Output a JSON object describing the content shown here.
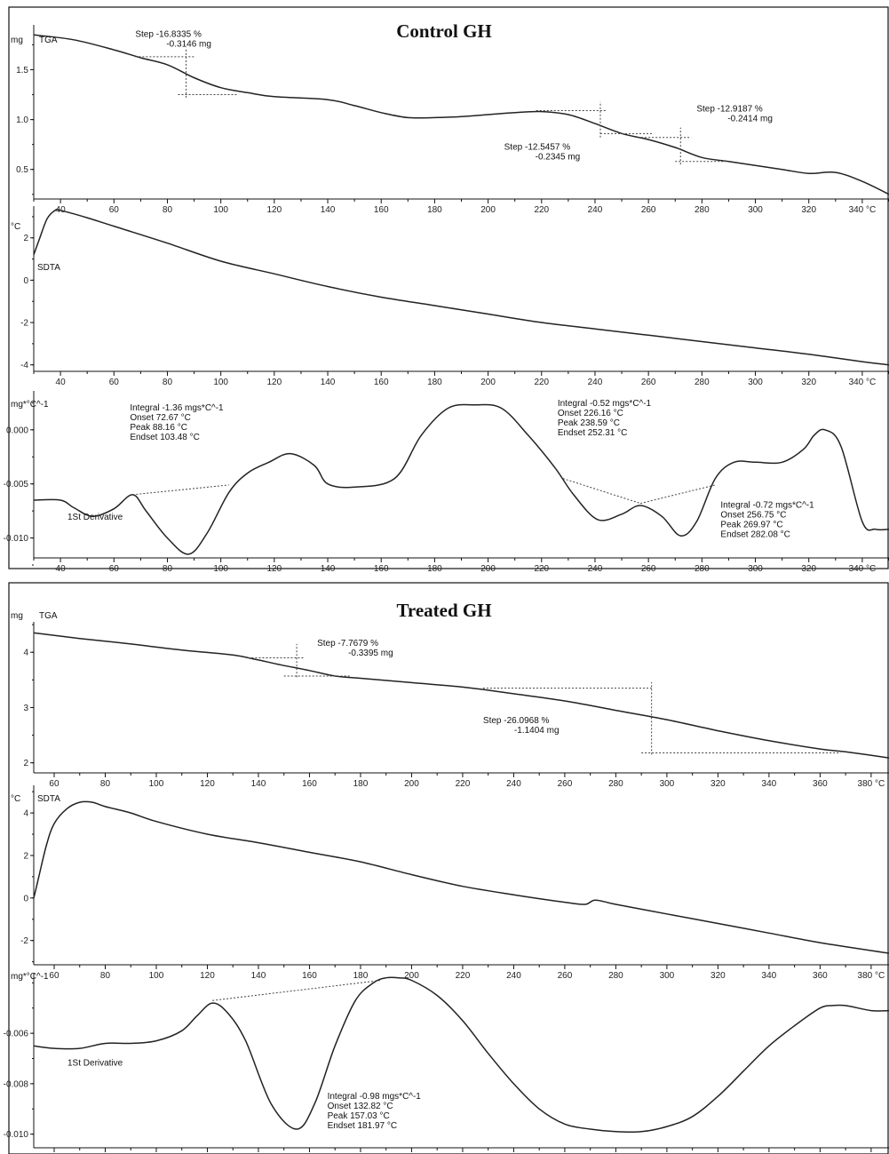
{
  "figures": [
    {
      "title": "Control GH",
      "xlim": [
        30,
        350
      ],
      "x_tick_suffix_last": "°C",
      "x_ticks": [
        40,
        60,
        80,
        100,
        120,
        140,
        160,
        180,
        200,
        220,
        240,
        260,
        280,
        300,
        320,
        340
      ],
      "panels": [
        {
          "id": "tga",
          "unit": "mg",
          "label": "TGA",
          "ylim": [
            0.15,
            1.95
          ],
          "y_ticks": [
            0.5,
            1.0,
            1.5
          ],
          "y_tick_labels": [
            "0.5",
            "1.0",
            "1.5"
          ],
          "x": [
            30,
            45,
            60,
            70,
            80,
            90,
            100,
            110,
            120,
            140,
            150,
            160,
            170,
            180,
            190,
            200,
            210,
            220,
            230,
            240,
            250,
            260,
            270,
            280,
            290,
            300,
            310,
            320,
            330,
            340,
            350
          ],
          "y": [
            1.85,
            1.8,
            1.7,
            1.62,
            1.55,
            1.42,
            1.32,
            1.27,
            1.23,
            1.2,
            1.14,
            1.07,
            1.02,
            1.02,
            1.03,
            1.05,
            1.07,
            1.08,
            1.05,
            0.96,
            0.86,
            0.8,
            0.72,
            0.62,
            0.58,
            0.54,
            0.5,
            0.46,
            0.47,
            0.38,
            0.25
          ],
          "annotations": [
            {
              "lines": [
                "Step  -16.8335 %",
                "-0.3146 mg"
              ],
              "x": 68,
              "y": 1.83
            },
            {
              "lines": [
                "Step  -12.5457 %",
                "-0.2345 mg"
              ],
              "x": 206,
              "y": 0.7
            },
            {
              "lines": [
                "Step  -12.9187 %",
                "-0.2414 mg"
              ],
              "x": 278,
              "y": 1.08
            }
          ]
        },
        {
          "id": "sdta",
          "unit": "°C",
          "label": "SDTA",
          "ylim": [
            -4.6,
            3.5
          ],
          "y_ticks": [
            -4,
            -2,
            0,
            2
          ],
          "y_tick_labels": [
            "-4",
            "-2",
            "0",
            "2"
          ],
          "x": [
            30,
            32,
            35,
            38,
            40,
            50,
            60,
            80,
            100,
            120,
            140,
            160,
            180,
            200,
            220,
            240,
            260,
            280,
            300,
            320,
            340,
            350
          ],
          "y": [
            1.2,
            1.9,
            2.9,
            3.3,
            3.3,
            2.95,
            2.55,
            1.75,
            0.9,
            0.3,
            -0.3,
            -0.8,
            -1.2,
            -1.6,
            -2.0,
            -2.3,
            -2.6,
            -2.9,
            -3.2,
            -3.5,
            -3.85,
            -4.0
          ]
        },
        {
          "id": "deriv",
          "unit": "mg*°C^-1",
          "label": "1St Derivative",
          "ylim": [
            -0.0125,
            0.0036
          ],
          "y_ticks": [
            -0.01,
            -0.005,
            0.0
          ],
          "y_tick_labels": [
            "-0.010",
            "-0.005",
            "0.000"
          ],
          "x": [
            30,
            40,
            45,
            52,
            60,
            67,
            72,
            80,
            88,
            95,
            103,
            110,
            118,
            126,
            135,
            140,
            150,
            165,
            175,
            185,
            195,
            205,
            215,
            225,
            232,
            241,
            250,
            257,
            265,
            272,
            278,
            285,
            292,
            300,
            310,
            318,
            322,
            326,
            332,
            340,
            345,
            350
          ],
          "y": [
            -0.0065,
            -0.0065,
            -0.0072,
            -0.008,
            -0.0073,
            -0.006,
            -0.0075,
            -0.01,
            -0.0115,
            -0.0095,
            -0.0058,
            -0.004,
            -0.003,
            -0.0022,
            -0.0033,
            -0.005,
            -0.0053,
            -0.0045,
            -0.0005,
            0.002,
            0.0023,
            0.002,
            -0.0005,
            -0.0035,
            -0.006,
            -0.0083,
            -0.0078,
            -0.007,
            -0.008,
            -0.0098,
            -0.0085,
            -0.0045,
            -0.003,
            -0.003,
            -0.003,
            -0.0018,
            -0.0005,
            0.0,
            -0.0015,
            -0.0085,
            -0.0092,
            -0.0092
          ],
          "annotations": [
            {
              "lines": [
                "Integral  -1.36 mgs*C^-1",
                "Onset     72.67 °C",
                "Peak      88.16 °C",
                "Endset   103.48 °C"
              ],
              "x": 66,
              "y": 0.0018
            },
            {
              "lines": [
                "Integral  -0.52 mgs*C^-1",
                "Onset     226.16 °C",
                "Peak      238.59 °C",
                "Endset   252.31 °C"
              ],
              "x": 226,
              "y": 0.0022
            },
            {
              "lines": [
                "Integral  -0.72 mgs*C^-1",
                "Onset     256.75 °C",
                "Peak      269.97 °C",
                "Endset   282.08 °C"
              ],
              "x": 287,
              "y": -0.0072
            }
          ]
        }
      ]
    },
    {
      "title": "Treated GH",
      "xlim": [
        52,
        387
      ],
      "x_tick_suffix_last": "°C",
      "x_ticks": [
        60,
        80,
        100,
        120,
        140,
        160,
        180,
        200,
        220,
        240,
        260,
        280,
        300,
        320,
        340,
        360,
        380
      ],
      "panels": [
        {
          "id": "tga",
          "unit": "mg",
          "label": "TGA",
          "ylim": [
            1.85,
            4.55
          ],
          "y_ticks": [
            2,
            3,
            4
          ],
          "y_tick_labels": [
            "2",
            "3",
            "4"
          ],
          "x": [
            52,
            70,
            90,
            110,
            130,
            140,
            150,
            160,
            170,
            180,
            200,
            220,
            240,
            260,
            280,
            300,
            320,
            340,
            360,
            370,
            387
          ],
          "y": [
            4.35,
            4.25,
            4.15,
            4.04,
            3.95,
            3.86,
            3.76,
            3.67,
            3.57,
            3.53,
            3.45,
            3.37,
            3.25,
            3.12,
            2.95,
            2.78,
            2.58,
            2.4,
            2.25,
            2.2,
            2.09
          ],
          "annotations": [
            {
              "lines": [
                "Step  -7.7679 %",
                "-0.3395 mg"
              ],
              "x": 163,
              "y": 4.12
            },
            {
              "lines": [
                "Step  -26.0968 %",
                "-1.1404 mg"
              ],
              "x": 228,
              "y": 2.72
            }
          ]
        },
        {
          "id": "sdta",
          "unit": "°C",
          "label": "SDTA",
          "ylim": [
            -3.1,
            5.3
          ],
          "y_ticks": [
            -2,
            0,
            2,
            4
          ],
          "y_tick_labels": [
            "-2",
            "0",
            "2",
            "4"
          ],
          "x": [
            52,
            54,
            57,
            60,
            65,
            70,
            75,
            80,
            90,
            100,
            120,
            140,
            160,
            180,
            200,
            220,
            240,
            260,
            268,
            272,
            280,
            300,
            320,
            340,
            360,
            387
          ],
          "y": [
            0.0,
            1.0,
            2.5,
            3.5,
            4.2,
            4.5,
            4.5,
            4.3,
            4.0,
            3.6,
            3.0,
            2.6,
            2.15,
            1.7,
            1.1,
            0.55,
            0.15,
            -0.2,
            -0.3,
            -0.1,
            -0.3,
            -0.75,
            -1.2,
            -1.65,
            -2.1,
            -2.6
          ]
        },
        {
          "id": "deriv",
          "unit": "mg*°C^-1",
          "label": "1St Derivative",
          "ylim": [
            -0.0104,
            -0.0036
          ],
          "y_ticks": [
            -0.01,
            -0.008,
            -0.006
          ],
          "y_tick_labels": [
            "-0.010",
            "-0.008",
            "-0.006"
          ],
          "x": [
            52,
            60,
            70,
            80,
            90,
            100,
            110,
            116,
            122,
            128,
            135,
            145,
            155,
            162,
            170,
            178,
            185,
            190,
            195,
            200,
            210,
            220,
            230,
            240,
            250,
            260,
            270,
            280,
            290,
            300,
            310,
            320,
            330,
            340,
            350,
            360,
            365,
            370,
            380,
            387
          ],
          "y": [
            -0.0065,
            -0.0066,
            -0.0066,
            -0.0064,
            -0.0064,
            -0.0063,
            -0.0059,
            -0.0053,
            -0.0048,
            -0.0052,
            -0.0063,
            -0.0088,
            -0.0098,
            -0.0088,
            -0.0065,
            -0.0047,
            -0.004,
            -0.0038,
            -0.0038,
            -0.0039,
            -0.0045,
            -0.0055,
            -0.0068,
            -0.008,
            -0.009,
            -0.0096,
            -0.0098,
            -0.0099,
            -0.0099,
            -0.0097,
            -0.0093,
            -0.0085,
            -0.0075,
            -0.0065,
            -0.0057,
            -0.005,
            -0.0049,
            -0.0049,
            -0.0051,
            -0.0051
          ],
          "annotations": [
            {
              "lines": [
                "Integral  -0.98 mgs*C^-1",
                "Onset     132.82 °C",
                "Peak      157.03 °C",
                "Endset   181.97 °C"
              ],
              "x": 167,
              "y": -0.0086
            }
          ]
        }
      ]
    }
  ]
}
